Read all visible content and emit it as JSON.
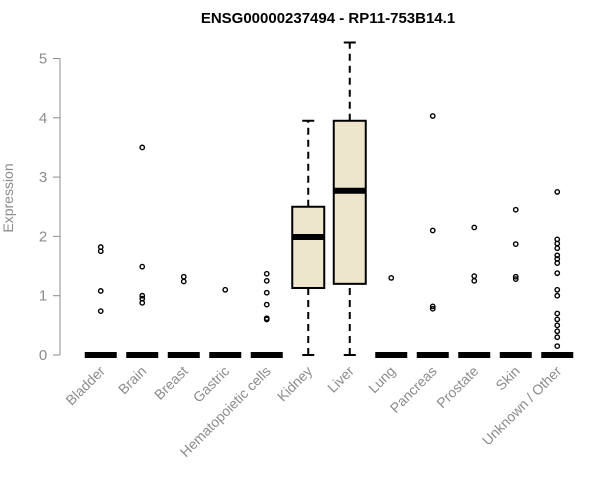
{
  "chart_data": {
    "type": "box",
    "title": "ENSG00000237494 - RP11-753B14.1",
    "ylabel": "Expression",
    "xlabel": "",
    "ylim": [
      0,
      5.3
    ],
    "yticks": [
      "0",
      "1",
      "2",
      "3",
      "4",
      "5"
    ],
    "grid": false,
    "box_fill": "#ede6cc",
    "categories": [
      "Bladder",
      "Brain",
      "Breast",
      "Gastric",
      "Hematopoietic cells",
      "Kidney",
      "Liver",
      "Lung",
      "Pancreas",
      "Prostate",
      "Skin",
      "Unknown / Other"
    ],
    "boxes": [
      {
        "name": "Bladder",
        "q1": 0,
        "median": 0,
        "q3": 0,
        "whisker_low": 0,
        "whisker_high": 0,
        "outliers": [
          0.74,
          1.08,
          1.75,
          1.82
        ]
      },
      {
        "name": "Brain",
        "q1": 0,
        "median": 0,
        "q3": 0,
        "whisker_low": 0,
        "whisker_high": 0,
        "outliers": [
          0.88,
          0.95,
          1.0,
          1.49,
          3.5
        ]
      },
      {
        "name": "Breast",
        "q1": 0,
        "median": 0,
        "q3": 0,
        "whisker_low": 0,
        "whisker_high": 0,
        "outliers": [
          1.24,
          1.32
        ]
      },
      {
        "name": "Gastric",
        "q1": 0,
        "median": 0,
        "q3": 0,
        "whisker_low": 0,
        "whisker_high": 0,
        "outliers": [
          1.1
        ]
      },
      {
        "name": "Hematopoietic cells",
        "q1": 0,
        "median": 0,
        "q3": 0,
        "whisker_low": 0,
        "whisker_high": 0,
        "outliers": [
          0.6,
          0.62,
          0.85,
          1.05,
          1.25,
          1.37
        ]
      },
      {
        "name": "Kidney",
        "q1": 1.13,
        "median": 1.99,
        "q3": 2.5,
        "whisker_low": 0,
        "whisker_high": 3.95,
        "outliers": []
      },
      {
        "name": "Liver",
        "q1": 1.2,
        "median": 2.77,
        "q3": 3.95,
        "whisker_low": 0,
        "whisker_high": 5.27,
        "outliers": []
      },
      {
        "name": "Lung",
        "q1": 0,
        "median": 0,
        "q3": 0,
        "whisker_low": 0,
        "whisker_high": 0,
        "outliers": [
          1.3
        ]
      },
      {
        "name": "Pancreas",
        "q1": 0,
        "median": 0,
        "q3": 0,
        "whisker_low": 0,
        "whisker_high": 0,
        "outliers": [
          0.78,
          0.82,
          2.1,
          4.03
        ]
      },
      {
        "name": "Prostate",
        "q1": 0,
        "median": 0,
        "q3": 0,
        "whisker_low": 0,
        "whisker_high": 0,
        "outliers": [
          1.25,
          1.33,
          2.15
        ]
      },
      {
        "name": "Skin",
        "q1": 0,
        "median": 0,
        "q3": 0,
        "whisker_low": 0,
        "whisker_high": 0,
        "outliers": [
          1.28,
          1.32,
          1.87,
          2.45
        ]
      },
      {
        "name": "Unknown / Other",
        "q1": 0,
        "median": 0,
        "q3": 0,
        "whisker_low": 0,
        "whisker_high": 0,
        "outliers": [
          0.15,
          0.3,
          0.4,
          0.5,
          0.6,
          0.7,
          1.0,
          1.1,
          1.38,
          1.55,
          1.62,
          1.68,
          1.8,
          1.88,
          1.95,
          2.75
        ]
      }
    ]
  }
}
